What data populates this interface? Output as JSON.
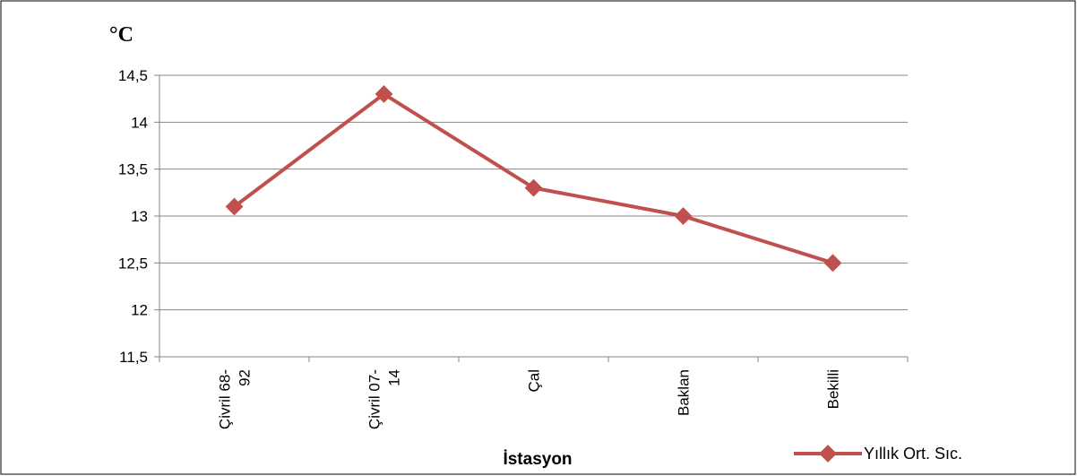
{
  "chart_data": {
    "type": "line",
    "categories": [
      [
        "Çivril 68-",
        "92"
      ],
      [
        "Çivril 07-",
        "14"
      ],
      [
        "Çal"
      ],
      [
        "Baklan"
      ],
      [
        "Bekilli"
      ]
    ],
    "series": [
      {
        "name": "Yıllık Ort. Sıc.",
        "values": [
          13.1,
          14.3,
          13.3,
          13.0,
          12.5
        ],
        "color": "#c0504d"
      }
    ],
    "ylabel": "°C",
    "xlabel": "İstasyon",
    "ylim": [
      11.5,
      14.5
    ],
    "yticks": [
      "11,5",
      "12",
      "12,5",
      "13",
      "13,5",
      "14",
      "14,5"
    ],
    "grid": true,
    "legend": "bottom-right"
  }
}
